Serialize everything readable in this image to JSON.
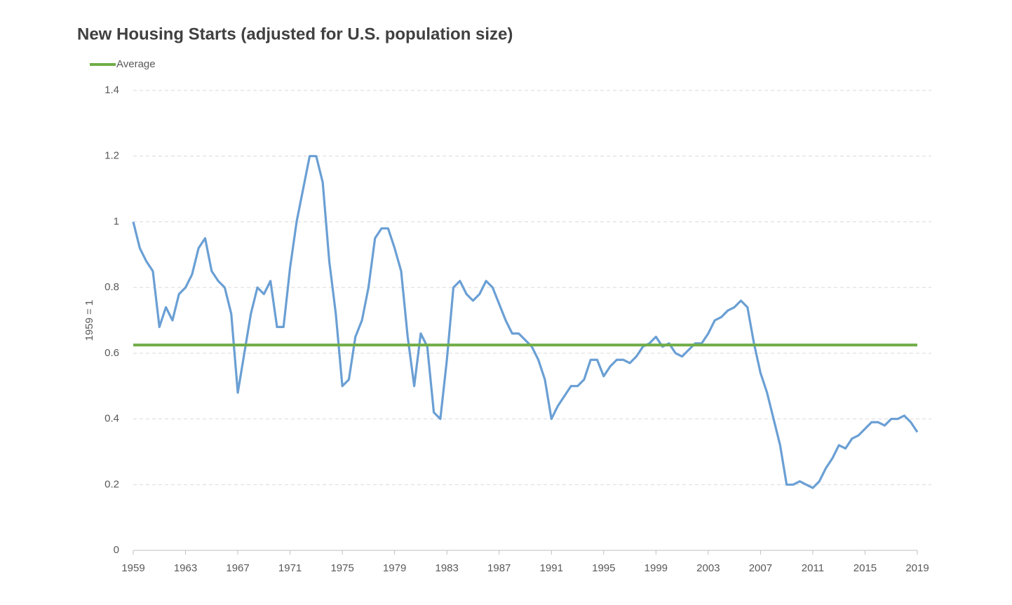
{
  "chart_data": {
    "type": "line",
    "title": "New Housing Starts (adjusted for U.S. population size)",
    "y_label": "1959 = 1",
    "x": [
      1959,
      1959.5,
      1960,
      1960.5,
      1961,
      1961.5,
      1962,
      1962.5,
      1963,
      1963.5,
      1964,
      1964.5,
      1965,
      1965.5,
      1966,
      1966.5,
      1967,
      1967.5,
      1968,
      1968.5,
      1969,
      1969.5,
      1970,
      1970.5,
      1971,
      1971.5,
      1972,
      1972.5,
      1973,
      1973.5,
      1974,
      1974.5,
      1975,
      1975.5,
      1976,
      1976.5,
      1977,
      1977.5,
      1978,
      1978.5,
      1979,
      1979.5,
      1980,
      1980.5,
      1981,
      1981.5,
      1982,
      1982.5,
      1983,
      1983.5,
      1984,
      1984.5,
      1985,
      1985.5,
      1986,
      1986.5,
      1987,
      1987.5,
      1988,
      1988.5,
      1989,
      1989.5,
      1990,
      1990.5,
      1991,
      1991.5,
      1992,
      1992.5,
      1993,
      1993.5,
      1994,
      1994.5,
      1995,
      1995.5,
      1996,
      1996.5,
      1997,
      1997.5,
      1998,
      1998.5,
      1999,
      1999.5,
      2000,
      2000.5,
      2001,
      2001.5,
      2002,
      2002.5,
      2003,
      2003.5,
      2004,
      2004.5,
      2005,
      2005.5,
      2006,
      2006.5,
      2007,
      2007.5,
      2008,
      2008.5,
      2009,
      2009.5,
      2010,
      2010.5,
      2011,
      2011.5,
      2012,
      2012.5,
      2013,
      2013.5,
      2014,
      2014.5,
      2015,
      2015.5,
      2016,
      2016.5,
      2017,
      2017.5,
      2018,
      2018.5,
      2019
    ],
    "series": [
      {
        "color": "#6a9fd4",
        "values": [
          1.0,
          0.92,
          0.88,
          0.85,
          0.68,
          0.74,
          0.7,
          0.78,
          0.8,
          0.84,
          0.92,
          0.95,
          0.85,
          0.82,
          0.8,
          0.72,
          0.48,
          0.6,
          0.72,
          0.8,
          0.78,
          0.82,
          0.68,
          0.68,
          0.86,
          1.0,
          1.1,
          1.2,
          1.2,
          1.12,
          0.88,
          0.72,
          0.5,
          0.52,
          0.65,
          0.7,
          0.8,
          0.95,
          0.98,
          0.98,
          0.92,
          0.85,
          0.65,
          0.5,
          0.66,
          0.62,
          0.42,
          0.4,
          0.58,
          0.8,
          0.82,
          0.78,
          0.76,
          0.78,
          0.82,
          0.8,
          0.75,
          0.7,
          0.66,
          0.66,
          0.64,
          0.62,
          0.58,
          0.52,
          0.4,
          0.44,
          0.47,
          0.5,
          0.5,
          0.52,
          0.58,
          0.58,
          0.53,
          0.56,
          0.58,
          0.58,
          0.57,
          0.59,
          0.62,
          0.63,
          0.65,
          0.62,
          0.63,
          0.6,
          0.59,
          0.61,
          0.63,
          0.63,
          0.66,
          0.7,
          0.71,
          0.73,
          0.74,
          0.76,
          0.74,
          0.63,
          0.54,
          0.48,
          0.4,
          0.32,
          0.2,
          0.2,
          0.21,
          0.2,
          0.19,
          0.21,
          0.25,
          0.28,
          0.32,
          0.31,
          0.34,
          0.35,
          0.37,
          0.39,
          0.39,
          0.38,
          0.4,
          0.4,
          0.41,
          0.39,
          0.36
        ]
      },
      {
        "name": "Average",
        "color": "#70ad47",
        "x": [
          1959,
          2019
        ],
        "values": [
          0.625,
          0.625
        ]
      }
    ],
    "xlim": [
      1959,
      2019
    ],
    "xticks": [
      1959,
      1963,
      1967,
      1971,
      1975,
      1979,
      1983,
      1987,
      1991,
      1995,
      1999,
      2003,
      2007,
      2011,
      2015,
      2019
    ],
    "ylim": [
      0,
      1.4
    ],
    "yticks": [
      0,
      0.2,
      0.4,
      0.6,
      0.8,
      1,
      1.2,
      1.4
    ],
    "grid": true,
    "legend": "top-left"
  }
}
